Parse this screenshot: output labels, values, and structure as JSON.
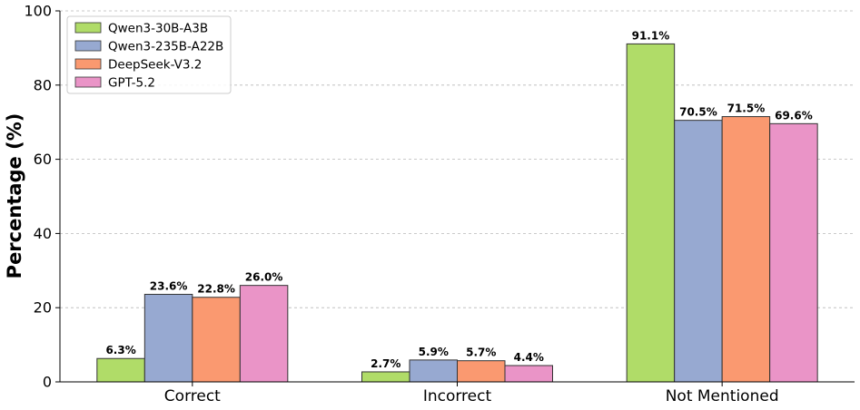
{
  "chart_data": {
    "type": "bar",
    "title": "",
    "xlabel": "",
    "ylabel": "Percentage (%)",
    "ylim": [
      0,
      100
    ],
    "yticks": [
      0,
      20,
      40,
      60,
      80,
      100
    ],
    "grid": "horizontal-dashed",
    "legend_position": "top-left",
    "categories": [
      "Correct",
      "Incorrect",
      "Not Mentioned"
    ],
    "series": [
      {
        "name": "Qwen3-30B-A3B",
        "color": "#b0dc68",
        "values": [
          6.3,
          2.7,
          91.1
        ],
        "labels": [
          "6.3%",
          "2.7%",
          "91.1%"
        ]
      },
      {
        "name": "Qwen3-235B-A22B",
        "color": "#97a9d1",
        "values": [
          23.6,
          5.9,
          70.5
        ],
        "labels": [
          "23.6%",
          "5.9%",
          "70.5%"
        ]
      },
      {
        "name": "DeepSeek-V3.2",
        "color": "#fa9970",
        "values": [
          22.8,
          5.7,
          71.5
        ],
        "labels": [
          "22.8%",
          "5.7%",
          "71.5%"
        ]
      },
      {
        "name": "GPT-5.2",
        "color": "#ea94c7",
        "values": [
          26.0,
          4.4,
          69.6
        ],
        "labels": [
          "26.0%",
          "4.4%",
          "69.6%"
        ]
      }
    ]
  }
}
